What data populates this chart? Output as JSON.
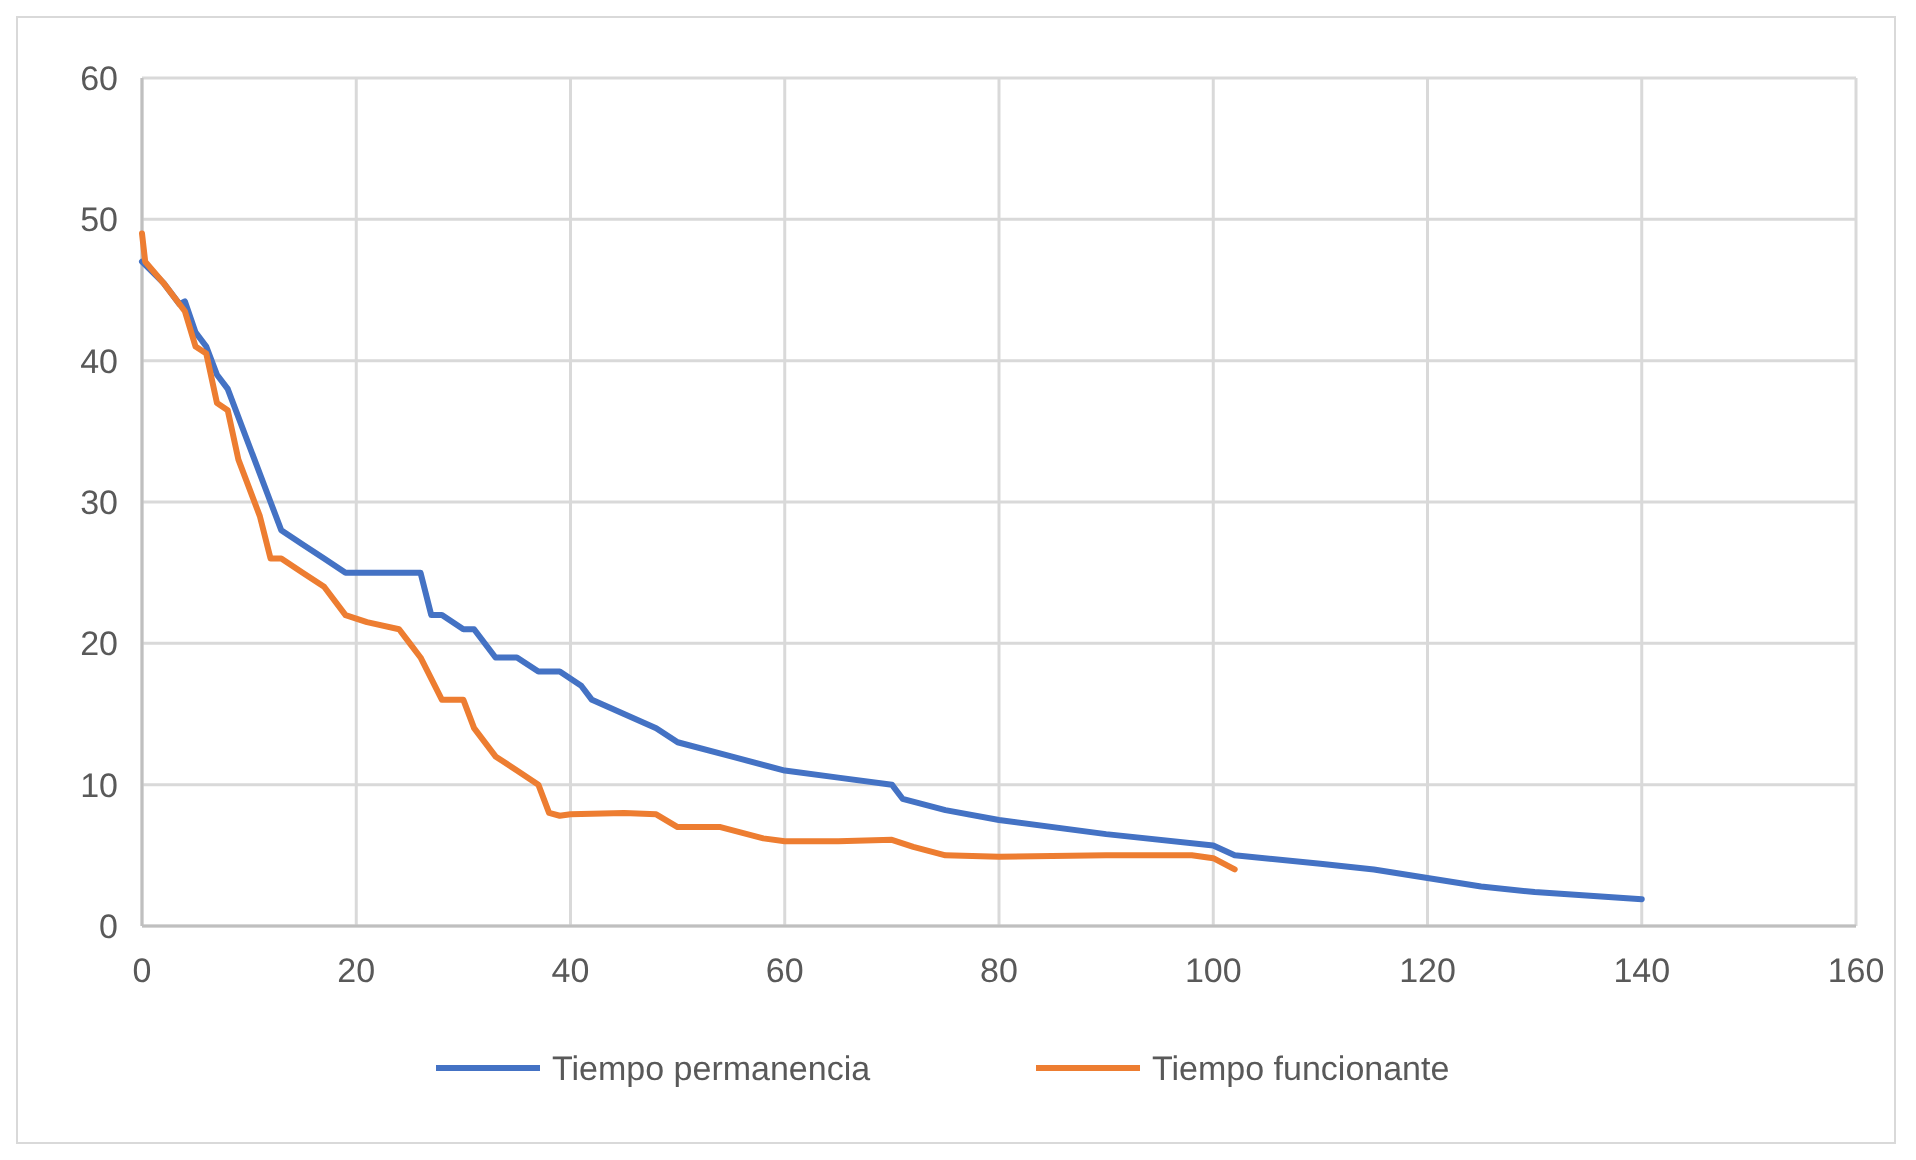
{
  "chart_data": {
    "type": "line",
    "xlim": [
      0,
      160
    ],
    "xticks": [
      0,
      20,
      40,
      60,
      80,
      100,
      120,
      140,
      160
    ],
    "ylim": [
      0,
      60
    ],
    "yticks": [
      0,
      10,
      20,
      30,
      40,
      50,
      60
    ],
    "grid": true,
    "legend": "bottom",
    "marker": "none",
    "line_style": "solid",
    "series": [
      {
        "name": "Tiempo permanencia",
        "color": "#4472c4",
        "x": [
          0,
          2,
          3.5,
          4,
          5,
          6,
          7,
          8,
          10,
          12,
          13,
          15,
          17,
          19,
          21,
          25,
          26,
          27,
          28,
          30,
          31,
          33,
          35,
          37,
          39,
          41,
          42,
          45,
          48,
          50,
          55,
          60,
          65,
          70,
          71,
          75,
          80,
          90,
          100,
          102,
          110,
          115,
          120,
          125,
          130,
          140
        ],
        "values": [
          47,
          45.5,
          44,
          44.2,
          42,
          41,
          39,
          38,
          34,
          30,
          28,
          27,
          26,
          25,
          25,
          25,
          25,
          22,
          22,
          21,
          21,
          19,
          19,
          18,
          18,
          17,
          16,
          15,
          14,
          13,
          12,
          11,
          10.5,
          10,
          9,
          8.2,
          7.5,
          6.5,
          5.7,
          5,
          4.4,
          4,
          3.4,
          2.8,
          2.4,
          1.9
        ]
      },
      {
        "name": "Tiempo funcionante",
        "color": "#ed7d31",
        "x": [
          0,
          0.3,
          2,
          4,
          5,
          6,
          7,
          8,
          9,
          11,
          12,
          13,
          15,
          17,
          19,
          21,
          24,
          25,
          26,
          28,
          29,
          30,
          31,
          33,
          35,
          37,
          38,
          39,
          40,
          45,
          48,
          50,
          54,
          58,
          60,
          65,
          70,
          72,
          75,
          80,
          90,
          98,
          100,
          102
        ],
        "values": [
          49,
          47,
          45.5,
          43.5,
          41,
          40.5,
          37,
          36.5,
          33,
          29,
          26,
          26,
          25,
          24,
          22,
          21.5,
          21,
          20,
          19,
          16,
          16,
          16,
          14,
          12,
          11,
          10,
          8,
          7.8,
          7.9,
          8,
          7.9,
          7,
          7,
          6.2,
          6,
          6,
          6.1,
          5.6,
          5,
          4.9,
          5,
          5,
          4.8,
          4
        ]
      }
    ]
  }
}
